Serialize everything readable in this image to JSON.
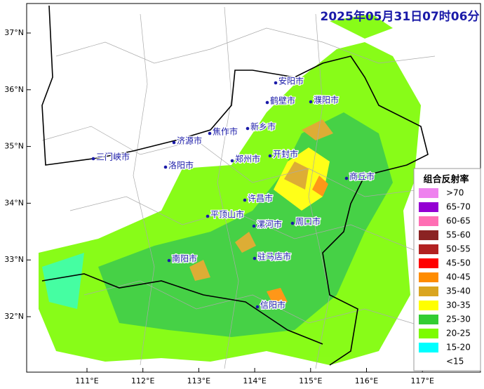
{
  "title": "2025年05月31日07时06分",
  "lat_labels": [
    "37°N",
    "36°N",
    "35°N",
    "34°N",
    "33°N",
    "32°N"
  ],
  "lon_labels": [
    "111°E",
    "112°E",
    "113°E",
    "114°E",
    "115°E",
    "116°E",
    "117°E"
  ],
  "cities": [
    "安阳市",
    "鹤壁市",
    "濮阳市",
    "新乡市",
    "焦作市",
    "济源市",
    "三门峡市",
    "郑州市",
    "开封市",
    "洛阳市",
    "商丘市",
    "许昌市",
    "平顶山市",
    "漯河市",
    "周口市",
    "南阳市",
    "驻马店市",
    "信阳市"
  ],
  "legend": {
    "title": "组合反射率",
    "items": [
      {
        "label": ">70",
        "color": "#ee82ee"
      },
      {
        "label": "65-70",
        "color": "#9400d3"
      },
      {
        "label": "60-65",
        "color": "#ff6eb4"
      },
      {
        "label": "55-60",
        "color": "#8b2323"
      },
      {
        "label": "50-55",
        "color": "#b22222"
      },
      {
        "label": "45-50",
        "color": "#ff0000"
      },
      {
        "label": "40-45",
        "color": "#ff8c00"
      },
      {
        "label": "35-40",
        "color": "#daa520"
      },
      {
        "label": "30-35",
        "color": "#ffff00"
      },
      {
        "label": "25-30",
        "color": "#32cd32"
      },
      {
        "label": "20-25",
        "color": "#7cfc00"
      },
      {
        "label": "15-20",
        "color": "#00ffff"
      },
      {
        "label": "<15",
        "color": "#ffffff"
      }
    ]
  }
}
